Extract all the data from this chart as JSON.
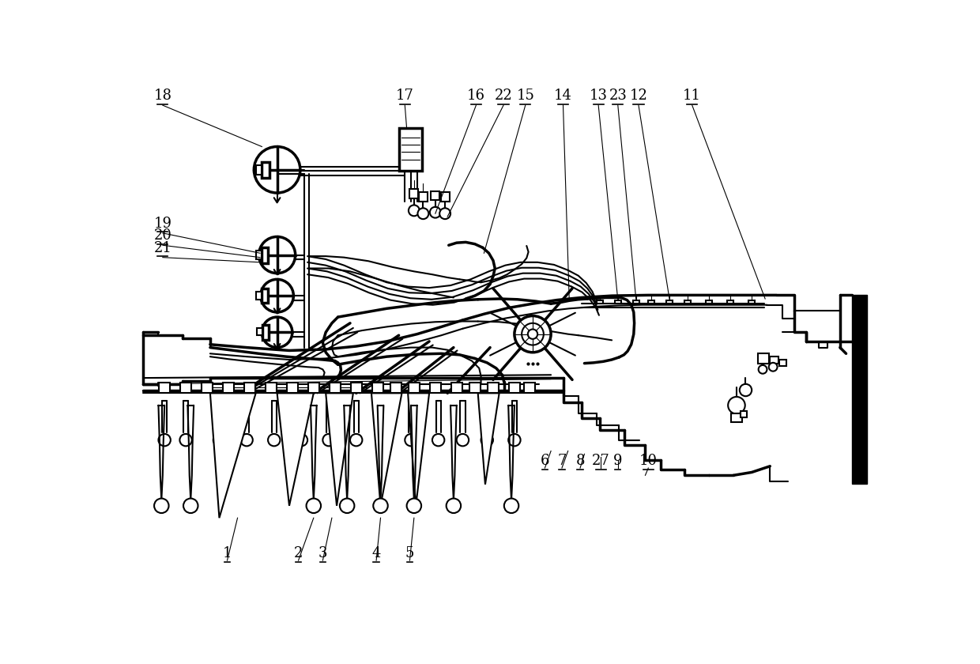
{
  "bg_color": "#ffffff",
  "line_color": "#000000",
  "lw_thin": 0.8,
  "lw_med": 1.5,
  "lw_thick": 2.5,
  "lw_heavy": 4.0,
  "labels_top": [
    [
      "18",
      62,
      38
    ],
    [
      "17",
      460,
      38
    ],
    [
      "16",
      577,
      38
    ],
    [
      "22",
      622,
      38
    ],
    [
      "15",
      658,
      38
    ],
    [
      "14",
      720,
      38
    ],
    [
      "13",
      778,
      38
    ],
    [
      "23",
      810,
      38
    ],
    [
      "12",
      844,
      38
    ],
    [
      "11",
      932,
      38
    ]
  ],
  "labels_left": [
    [
      "19",
      62,
      248
    ],
    [
      "20",
      62,
      268
    ],
    [
      "21",
      62,
      288
    ]
  ],
  "labels_bottom": [
    [
      "1",
      168,
      790
    ],
    [
      "2",
      285,
      790
    ],
    [
      "3",
      325,
      790
    ],
    [
      "4",
      413,
      790
    ],
    [
      "5",
      468,
      790
    ]
  ],
  "labels_mid": [
    [
      "6",
      690,
      638
    ],
    [
      "7",
      718,
      638
    ],
    [
      "8",
      748,
      638
    ],
    [
      "27",
      782,
      638
    ],
    [
      "9",
      810,
      638
    ],
    [
      "10",
      860,
      638
    ]
  ]
}
